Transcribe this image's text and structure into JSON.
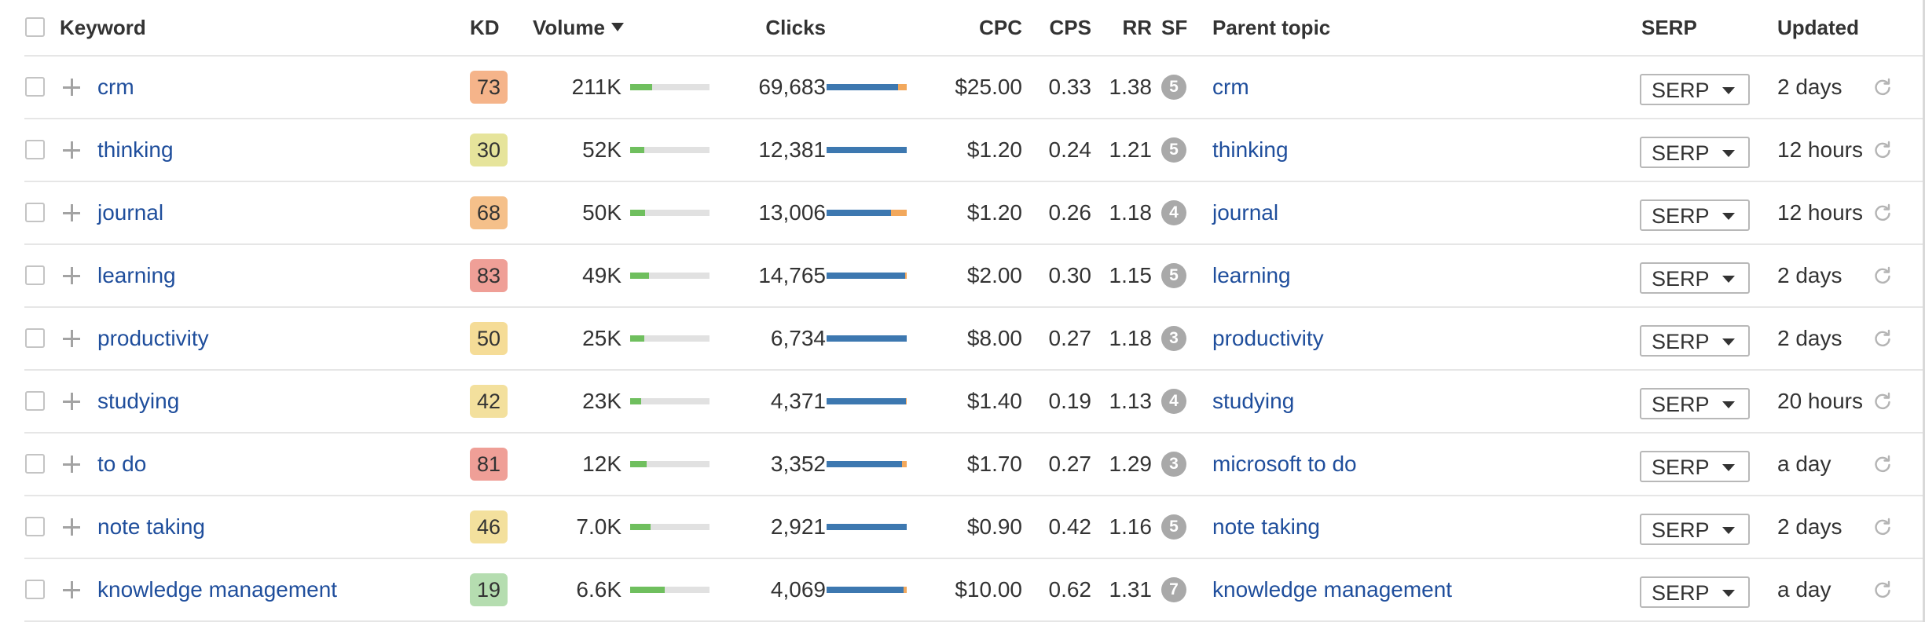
{
  "columns": {
    "keyword": "Keyword",
    "kd": "KD",
    "volume": "Volume",
    "clicks": "Clicks",
    "cpc": "CPC",
    "cps": "CPS",
    "rr": "RR",
    "sf": "SF",
    "parent_topic": "Parent topic",
    "serp": "SERP",
    "updated": "Updated"
  },
  "sort": {
    "column": "volume",
    "direction": "descending"
  },
  "colors": {
    "link": "#1f4e9c",
    "volume_bar_fill": "#6fbf5e",
    "clicks_organic": "#3d78b0",
    "clicks_paid": "#f2a85c",
    "bar_track": "#e1e1e1",
    "sf_badge": "#a9a9a9"
  },
  "icons": {
    "checkbox": "checkbox-icon",
    "add": "plus-icon",
    "sort": "sort-descending-caret-icon",
    "dropdown": "caret-down-icon",
    "refresh": "refresh-icon"
  },
  "rows": [
    {
      "keyword": "crm",
      "kd": "73",
      "kd_color": "#f5b48a",
      "volume": "211K",
      "volume_fraction": 0.28,
      "clicks": "69,683",
      "clicks_organic_fraction": 0.89,
      "clicks_paid_fraction": 0.11,
      "cpc": "$25.00",
      "cps": "0.33",
      "rr": "1.38",
      "sf": "5",
      "parent_topic": "crm",
      "serp": "SERP",
      "updated": "2 days"
    },
    {
      "keyword": "thinking",
      "kd": "30",
      "kd_color": "#e6e49b",
      "volume": "52K",
      "volume_fraction": 0.18,
      "clicks": "12,381",
      "clicks_organic_fraction": 1.0,
      "clicks_paid_fraction": 0.0,
      "cpc": "$1.20",
      "cps": "0.24",
      "rr": "1.21",
      "sf": "5",
      "parent_topic": "thinking",
      "serp": "SERP",
      "updated": "12 hours"
    },
    {
      "keyword": "journal",
      "kd": "68",
      "kd_color": "#f5c08a",
      "volume": "50K",
      "volume_fraction": 0.19,
      "clicks": "13,006",
      "clicks_organic_fraction": 0.8,
      "clicks_paid_fraction": 0.2,
      "cpc": "$1.20",
      "cps": "0.26",
      "rr": "1.18",
      "sf": "4",
      "parent_topic": "journal",
      "serp": "SERP",
      "updated": "12 hours"
    },
    {
      "keyword": "learning",
      "kd": "83",
      "kd_color": "#ef9f97",
      "volume": "49K",
      "volume_fraction": 0.24,
      "clicks": "14,765",
      "clicks_organic_fraction": 0.98,
      "clicks_paid_fraction": 0.02,
      "cpc": "$2.00",
      "cps": "0.30",
      "rr": "1.15",
      "sf": "5",
      "parent_topic": "learning",
      "serp": "SERP",
      "updated": "2 days"
    },
    {
      "keyword": "productivity",
      "kd": "50",
      "kd_color": "#f5dc97",
      "volume": "25K",
      "volume_fraction": 0.18,
      "clicks": "6,734",
      "clicks_organic_fraction": 1.0,
      "clicks_paid_fraction": 0.0,
      "cpc": "$8.00",
      "cps": "0.27",
      "rr": "1.18",
      "sf": "3",
      "parent_topic": "productivity",
      "serp": "SERP",
      "updated": "2 days"
    },
    {
      "keyword": "studying",
      "kd": "42",
      "kd_color": "#f3e09d",
      "volume": "23K",
      "volume_fraction": 0.14,
      "clicks": "4,371",
      "clicks_organic_fraction": 0.99,
      "clicks_paid_fraction": 0.01,
      "cpc": "$1.40",
      "cps": "0.19",
      "rr": "1.13",
      "sf": "4",
      "parent_topic": "studying",
      "serp": "SERP",
      "updated": "20 hours"
    },
    {
      "keyword": "to do",
      "kd": "81",
      "kd_color": "#ef9f97",
      "volume": "12K",
      "volume_fraction": 0.21,
      "clicks": "3,352",
      "clicks_organic_fraction": 0.94,
      "clicks_paid_fraction": 0.06,
      "cpc": "$1.70",
      "cps": "0.27",
      "rr": "1.29",
      "sf": "3",
      "parent_topic": "microsoft to do",
      "serp": "SERP",
      "updated": "a day"
    },
    {
      "keyword": "note taking",
      "kd": "46",
      "kd_color": "#f3e09d",
      "volume": "7.0K",
      "volume_fraction": 0.26,
      "clicks": "2,921",
      "clicks_organic_fraction": 1.0,
      "clicks_paid_fraction": 0.0,
      "cpc": "$0.90",
      "cps": "0.42",
      "rr": "1.16",
      "sf": "5",
      "parent_topic": "note taking",
      "serp": "SERP",
      "updated": "2 days"
    },
    {
      "keyword": "knowledge management",
      "kd": "19",
      "kd_color": "#b5ddb0",
      "volume": "6.6K",
      "volume_fraction": 0.44,
      "clicks": "4,069",
      "clicks_organic_fraction": 0.96,
      "clicks_paid_fraction": 0.04,
      "cpc": "$10.00",
      "cps": "0.62",
      "rr": "1.31",
      "sf": "7",
      "parent_topic": "knowledge management",
      "serp": "SERP",
      "updated": "a day"
    }
  ]
}
